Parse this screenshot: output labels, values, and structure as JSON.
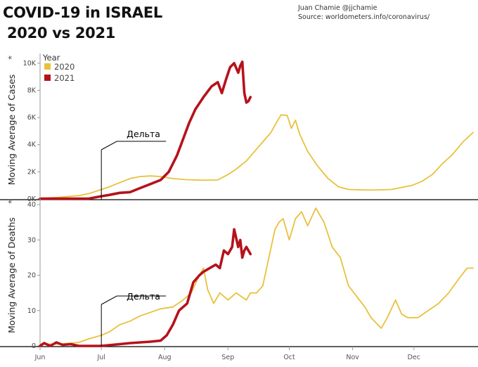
{
  "header": {
    "title_line1": "COVID-19 in ISRAEL",
    "title_line2": "2020 vs 2021",
    "author": "Juan Chamie @jjchamie",
    "source": "Source: worldometers.info/coronavirus/"
  },
  "legend": {
    "title": "Year",
    "placement": "top-left",
    "items": [
      {
        "label": "2020",
        "color": "#e8c13d"
      },
      {
        "label": "2021",
        "color": "#b5121b"
      }
    ]
  },
  "colors": {
    "y2020": "#e8c13d",
    "y2021": "#b5121b",
    "axis": "#000000",
    "annotation": "#000000"
  },
  "x_axis": {
    "ticks": [
      "Jun",
      "Jul",
      "Aug",
      "Sep",
      "Oct",
      "Nov",
      "Dec"
    ]
  },
  "chart_data": [
    {
      "type": "line",
      "ylabel": "Moving Average of Cases",
      "ylim": [
        0,
        10200
      ],
      "yticks": [
        {
          "value": 0,
          "label": "0K"
        },
        {
          "value": 2000,
          "label": "2K"
        },
        {
          "value": 4000,
          "label": "4K"
        },
        {
          "value": 6000,
          "label": "6K"
        },
        {
          "value": 8000,
          "label": "8K"
        },
        {
          "value": 10000,
          "label": "10K"
        }
      ],
      "xlim": [
        "06-01",
        "12-31"
      ],
      "annotation": {
        "text": "Дельта",
        "date": "07-01"
      },
      "series": [
        {
          "name": "2020",
          "points": [
            [
              "06-01",
              40
            ],
            [
              "06-10",
              120
            ],
            [
              "06-20",
              250
            ],
            [
              "06-25",
              400
            ],
            [
              "07-01",
              700
            ],
            [
              "07-05",
              900
            ],
            [
              "07-10",
              1200
            ],
            [
              "07-15",
              1500
            ],
            [
              "07-20",
              1650
            ],
            [
              "07-25",
              1700
            ],
            [
              "07-30",
              1650
            ],
            [
              "08-05",
              1500
            ],
            [
              "08-12",
              1420
            ],
            [
              "08-20",
              1380
            ],
            [
              "08-27",
              1400
            ],
            [
              "09-01",
              1800
            ],
            [
              "09-05",
              2200
            ],
            [
              "09-10",
              2800
            ],
            [
              "09-14",
              3500
            ],
            [
              "09-18",
              4200
            ],
            [
              "09-22",
              4900
            ],
            [
              "09-25",
              5700
            ],
            [
              "09-27",
              6200
            ],
            [
              "09-30",
              6150
            ],
            [
              "10-02",
              5200
            ],
            [
              "10-04",
              5800
            ],
            [
              "10-06",
              4800
            ],
            [
              "10-10",
              3500
            ],
            [
              "10-15",
              2400
            ],
            [
              "10-20",
              1500
            ],
            [
              "10-25",
              900
            ],
            [
              "10-30",
              700
            ],
            [
              "11-10",
              650
            ],
            [
              "11-20",
              700
            ],
            [
              "11-30",
              1000
            ],
            [
              "12-05",
              1300
            ],
            [
              "12-10",
              1800
            ],
            [
              "12-15",
              2600
            ],
            [
              "12-20",
              3300
            ],
            [
              "12-25",
              4200
            ],
            [
              "12-30",
              4900
            ]
          ]
        },
        {
          "name": "2021",
          "points": [
            [
              "06-01",
              20
            ],
            [
              "06-15",
              20
            ],
            [
              "06-25",
              30
            ],
            [
              "07-01",
              200
            ],
            [
              "07-05",
              300
            ],
            [
              "07-10",
              450
            ],
            [
              "07-15",
              500
            ],
            [
              "07-20",
              800
            ],
            [
              "07-25",
              1100
            ],
            [
              "07-30",
              1400
            ],
            [
              "08-03",
              2000
            ],
            [
              "08-07",
              3200
            ],
            [
              "08-10",
              4400
            ],
            [
              "08-13",
              5600
            ],
            [
              "08-16",
              6600
            ],
            [
              "08-20",
              7500
            ],
            [
              "08-24",
              8300
            ],
            [
              "08-27",
              8600
            ],
            [
              "08-29",
              7800
            ],
            [
              "08-31",
              8800
            ],
            [
              "09-02",
              9700
            ],
            [
              "09-04",
              10000
            ],
            [
              "09-06",
              9300
            ],
            [
              "09-07",
              9800
            ],
            [
              "09-08",
              10100
            ],
            [
              "09-09",
              7800
            ],
            [
              "09-10",
              7100
            ],
            [
              "09-11",
              7200
            ],
            [
              "09-12",
              7500
            ]
          ]
        }
      ]
    },
    {
      "type": "line",
      "ylabel": "Moving Average of Deaths",
      "ylim": [
        0,
        40
      ],
      "yticks": [
        {
          "value": 0,
          "label": "0"
        },
        {
          "value": 10,
          "label": "10"
        },
        {
          "value": 20,
          "label": "20"
        },
        {
          "value": 30,
          "label": "30"
        },
        {
          "value": 40,
          "label": "40"
        }
      ],
      "xlim": [
        "06-01",
        "12-31"
      ],
      "annotation": {
        "text": "Дельта",
        "date": "07-01"
      },
      "series": [
        {
          "name": "2020",
          "points": [
            [
              "06-01",
              0.5
            ],
            [
              "06-10",
              0.5
            ],
            [
              "06-20",
              1
            ],
            [
              "06-25",
              2
            ],
            [
              "07-01",
              3
            ],
            [
              "07-05",
              4
            ],
            [
              "07-10",
              6
            ],
            [
              "07-15",
              7
            ],
            [
              "07-20",
              8.5
            ],
            [
              "07-25",
              9.5
            ],
            [
              "07-30",
              10.5
            ],
            [
              "08-05",
              11
            ],
            [
              "08-10",
              13
            ],
            [
              "08-14",
              15
            ],
            [
              "08-18",
              20
            ],
            [
              "08-20",
              22
            ],
            [
              "08-22",
              16
            ],
            [
              "08-25",
              12
            ],
            [
              "08-28",
              15
            ],
            [
              "09-01",
              13
            ],
            [
              "09-05",
              15
            ],
            [
              "09-10",
              13
            ],
            [
              "09-12",
              15
            ],
            [
              "09-15",
              15
            ],
            [
              "09-18",
              17
            ],
            [
              "09-21",
              25
            ],
            [
              "09-24",
              33
            ],
            [
              "09-26",
              35
            ],
            [
              "09-28",
              36
            ],
            [
              "10-01",
              30
            ],
            [
              "10-04",
              36
            ],
            [
              "10-07",
              38
            ],
            [
              "10-10",
              34
            ],
            [
              "10-14",
              39
            ],
            [
              "10-18",
              35
            ],
            [
              "10-22",
              28
            ],
            [
              "10-26",
              25
            ],
            [
              "10-30",
              17
            ],
            [
              "11-03",
              14
            ],
            [
              "11-07",
              11
            ],
            [
              "11-10",
              8
            ],
            [
              "11-15",
              5
            ],
            [
              "11-18",
              8
            ],
            [
              "11-22",
              13
            ],
            [
              "11-25",
              9
            ],
            [
              "11-28",
              8
            ],
            [
              "12-03",
              8
            ],
            [
              "12-08",
              10
            ],
            [
              "12-13",
              12
            ],
            [
              "12-18",
              15
            ],
            [
              "12-23",
              19
            ],
            [
              "12-27",
              22
            ],
            [
              "12-30",
              22
            ]
          ]
        },
        {
          "name": "2021",
          "points": [
            [
              "06-01",
              0
            ],
            [
              "06-03",
              0.8
            ],
            [
              "06-06",
              0
            ],
            [
              "06-09",
              1
            ],
            [
              "06-12",
              0.3
            ],
            [
              "06-16",
              0.5
            ],
            [
              "06-20",
              0
            ],
            [
              "06-25",
              0
            ],
            [
              "07-01",
              0
            ],
            [
              "07-10",
              0.5
            ],
            [
              "07-15",
              0.8
            ],
            [
              "07-20",
              1
            ],
            [
              "07-25",
              1.2
            ],
            [
              "07-30",
              1.5
            ],
            [
              "08-02",
              3
            ],
            [
              "08-05",
              6
            ],
            [
              "08-08",
              10
            ],
            [
              "08-12",
              12
            ],
            [
              "08-15",
              18
            ],
            [
              "08-18",
              20
            ],
            [
              "08-20",
              21
            ],
            [
              "08-23",
              22
            ],
            [
              "08-26",
              23
            ],
            [
              "08-28",
              22
            ],
            [
              "08-30",
              27
            ],
            [
              "09-01",
              26
            ],
            [
              "09-03",
              28
            ],
            [
              "09-04",
              33
            ],
            [
              "09-06",
              28
            ],
            [
              "09-07",
              30
            ],
            [
              "09-08",
              25
            ],
            [
              "09-09",
              27
            ],
            [
              "09-10",
              28
            ],
            [
              "09-12",
              26
            ]
          ]
        }
      ]
    }
  ]
}
